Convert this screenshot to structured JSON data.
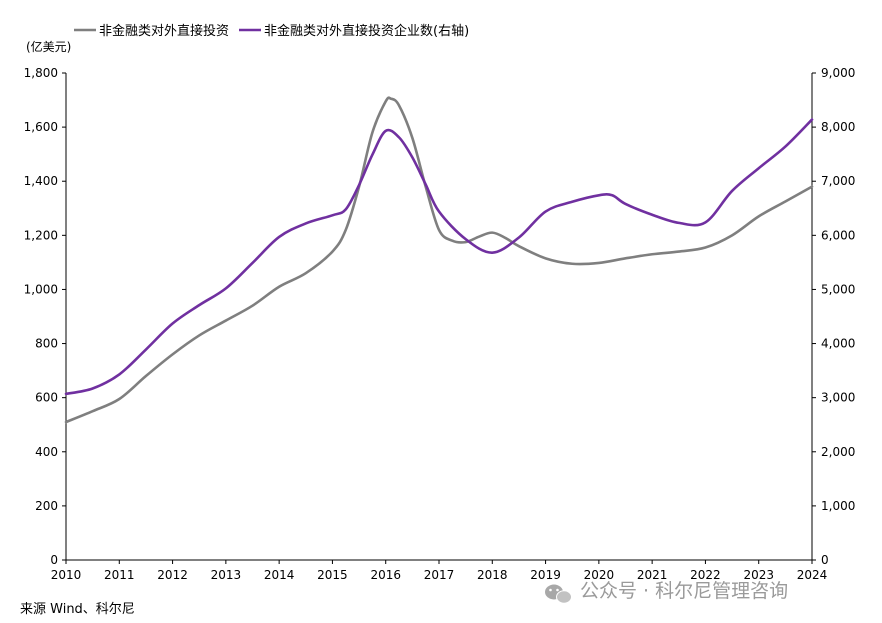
{
  "chart_data": {
    "type": "line",
    "title": "",
    "y_unit_label": "(亿美元)",
    "x": [
      2010,
      2011,
      2012,
      2013,
      2014,
      2015,
      2016,
      2017,
      2018,
      2019,
      2020,
      2021,
      2022,
      2023,
      2024
    ],
    "x_tick_labels": [
      "2010",
      "2011",
      "2012",
      "2013",
      "2014",
      "2015",
      "2016",
      "2017",
      "2018",
      "2019",
      "2020",
      "2021",
      "2022",
      "2023",
      "2024"
    ],
    "ylim_left": [
      0,
      1800
    ],
    "ylim_right": [
      0,
      9000
    ],
    "y_left_ticks": [
      "0",
      "200",
      "400",
      "600",
      "800",
      "1,000",
      "1,200",
      "1,400",
      "1,600",
      "1,800"
    ],
    "y_right_ticks": [
      "0",
      "1,000",
      "2,000",
      "3,000",
      "4,000",
      "5,000",
      "6,000",
      "7,000",
      "8,000",
      "9,000"
    ],
    "grid": false,
    "legend_position": "top-left",
    "series": [
      {
        "name": "非金融类对外直接投资",
        "axis": "left",
        "color": "#7f7f7f",
        "points": [
          [
            2010.0,
            510
          ],
          [
            2010.5,
            550
          ],
          [
            2011.0,
            595
          ],
          [
            2011.5,
            680
          ],
          [
            2012.0,
            760
          ],
          [
            2012.5,
            830
          ],
          [
            2013.0,
            885
          ],
          [
            2013.5,
            940
          ],
          [
            2014.0,
            1010
          ],
          [
            2014.5,
            1060
          ],
          [
            2015.0,
            1140
          ],
          [
            2015.25,
            1220
          ],
          [
            2015.5,
            1380
          ],
          [
            2015.75,
            1580
          ],
          [
            2016.0,
            1695
          ],
          [
            2016.1,
            1705
          ],
          [
            2016.25,
            1680
          ],
          [
            2016.5,
            1560
          ],
          [
            2016.75,
            1380
          ],
          [
            2017.0,
            1220
          ],
          [
            2017.25,
            1180
          ],
          [
            2017.5,
            1175
          ],
          [
            2017.75,
            1195
          ],
          [
            2018.0,
            1210
          ],
          [
            2018.25,
            1190
          ],
          [
            2018.5,
            1160
          ],
          [
            2019.0,
            1115
          ],
          [
            2019.5,
            1095
          ],
          [
            2020.0,
            1098
          ],
          [
            2020.5,
            1115
          ],
          [
            2021.0,
            1130
          ],
          [
            2021.5,
            1140
          ],
          [
            2022.0,
            1155
          ],
          [
            2022.5,
            1200
          ],
          [
            2023.0,
            1270
          ],
          [
            2023.5,
            1325
          ],
          [
            2024.0,
            1380
          ]
        ]
      },
      {
        "name": "非金融类对外直接投资企业数(右轴)",
        "axis": "right",
        "color": "#7030a0",
        "points": [
          [
            2010.0,
            3070
          ],
          [
            2010.5,
            3170
          ],
          [
            2011.0,
            3430
          ],
          [
            2011.5,
            3890
          ],
          [
            2012.0,
            4370
          ],
          [
            2012.5,
            4710
          ],
          [
            2013.0,
            5020
          ],
          [
            2013.5,
            5490
          ],
          [
            2014.0,
            5970
          ],
          [
            2014.5,
            6220
          ],
          [
            2015.0,
            6370
          ],
          [
            2015.25,
            6480
          ],
          [
            2015.5,
            6930
          ],
          [
            2015.75,
            7490
          ],
          [
            2016.0,
            7930
          ],
          [
            2016.25,
            7810
          ],
          [
            2016.5,
            7440
          ],
          [
            2016.75,
            6940
          ],
          [
            2017.0,
            6440
          ],
          [
            2017.5,
            5930
          ],
          [
            2018.0,
            5680
          ],
          [
            2018.5,
            5960
          ],
          [
            2019.0,
            6440
          ],
          [
            2019.5,
            6620
          ],
          [
            2020.0,
            6740
          ],
          [
            2020.25,
            6740
          ],
          [
            2020.5,
            6580
          ],
          [
            2021.0,
            6380
          ],
          [
            2021.5,
            6230
          ],
          [
            2022.0,
            6240
          ],
          [
            2022.5,
            6820
          ],
          [
            2023.0,
            7240
          ],
          [
            2023.5,
            7640
          ],
          [
            2024.0,
            8140
          ]
        ]
      }
    ],
    "source_note": "来源 Wind、科尔尼"
  },
  "watermark": {
    "text": "公众号 · 科尔尼管理咨询",
    "icon": "wechat-icon"
  }
}
